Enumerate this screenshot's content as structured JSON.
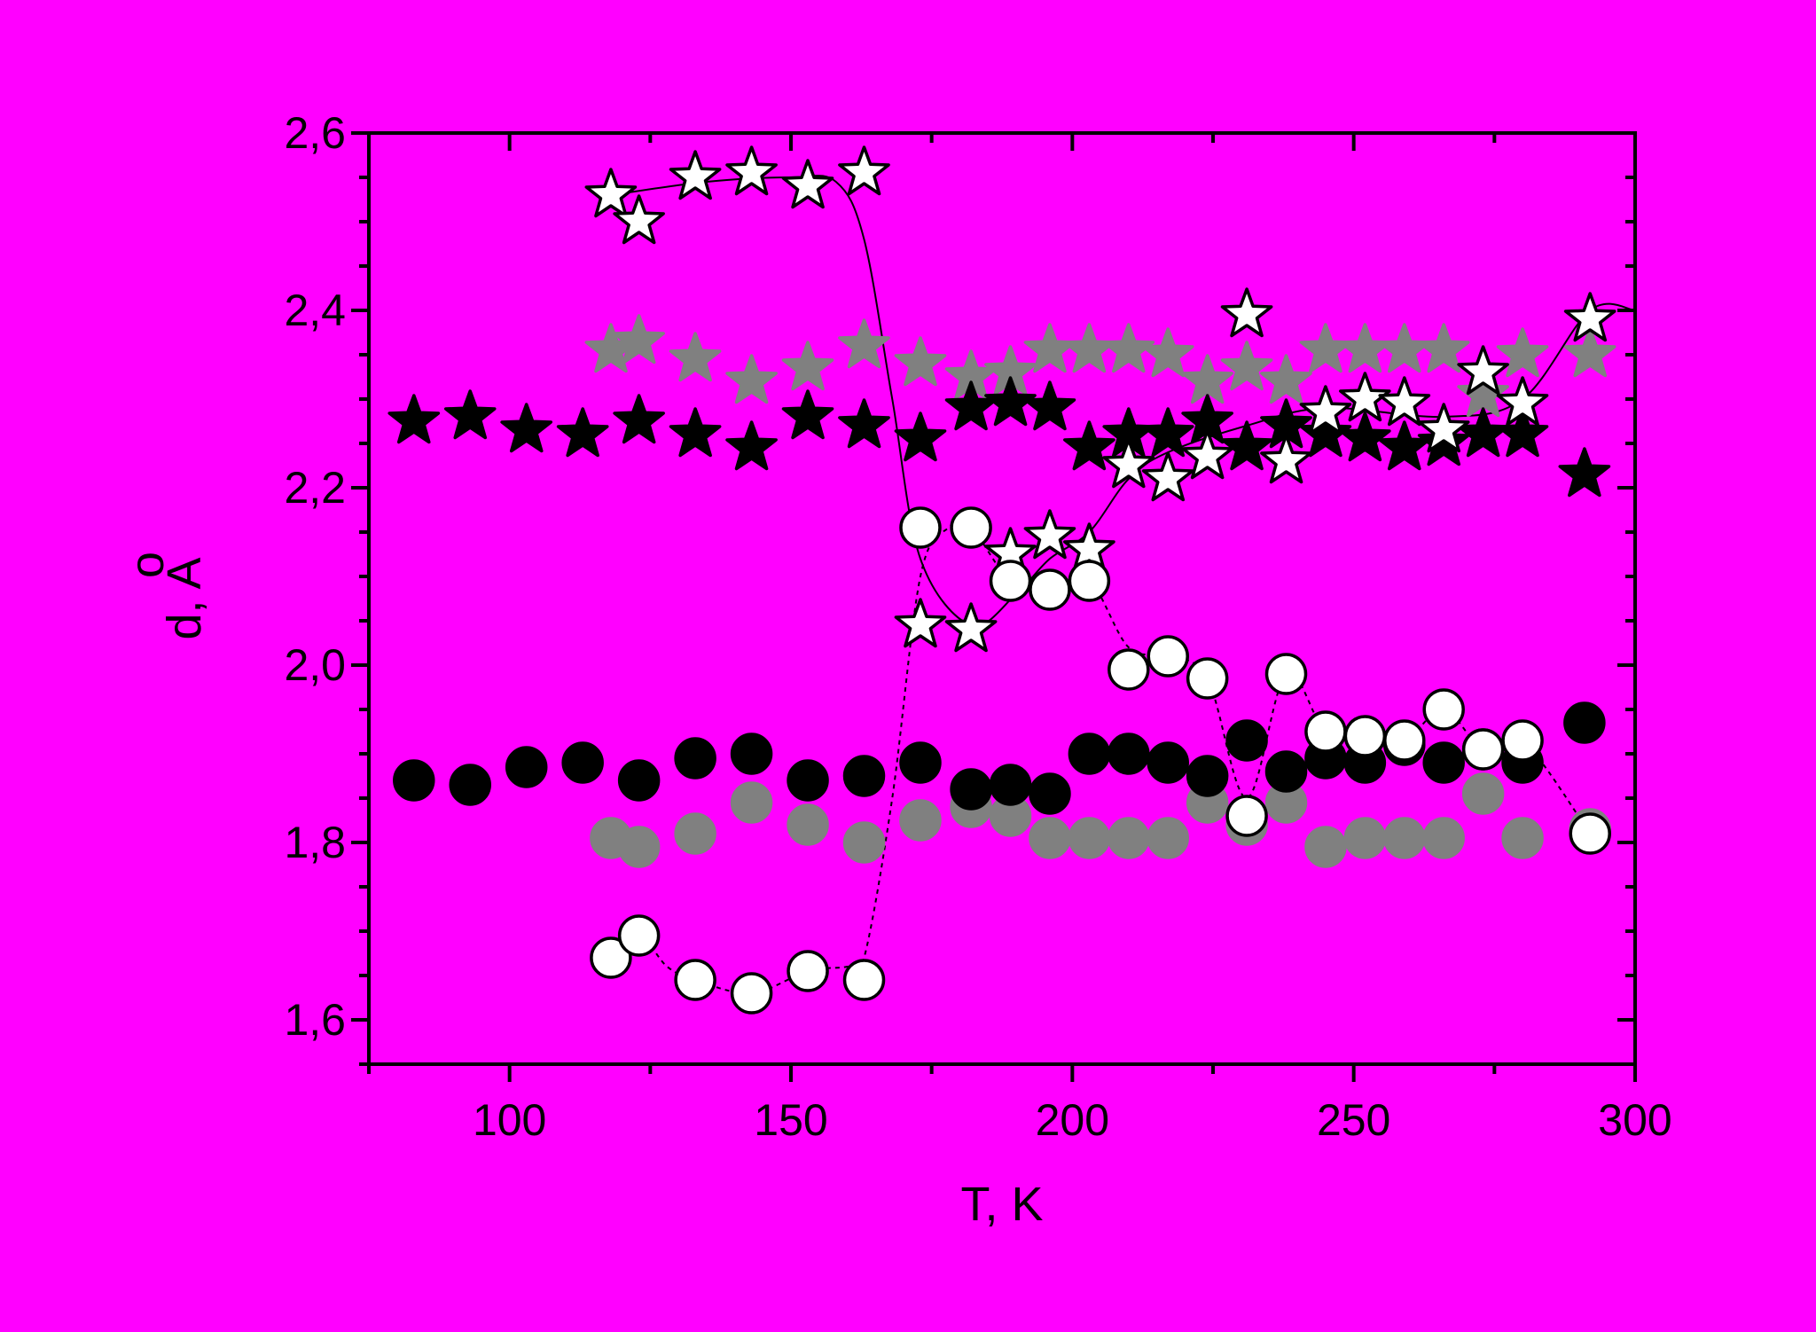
{
  "chart_data": {
    "type": "scatter",
    "xlabel": "T, K",
    "ylabel": "d, A",
    "ylabel_accent": "o",
    "xlim": [
      75,
      300
    ],
    "ylim": [
      1.55,
      2.6
    ],
    "xticks": [
      100,
      150,
      200,
      250,
      300
    ],
    "xtick_labels": [
      "100",
      "150",
      "200",
      "250",
      "300"
    ],
    "yticks": [
      1.6,
      1.8,
      2.0,
      2.2,
      2.4,
      2.6
    ],
    "ytick_labels": [
      "1,6",
      "1,8",
      "2,0",
      "2,2",
      "2,4",
      "2,6"
    ],
    "grid": false,
    "legend": "none",
    "colors": {
      "background": "#ff00ff",
      "black": "#000000",
      "gray": "#808080",
      "white": "#ffffff"
    },
    "series": [
      {
        "marker": "star",
        "fill": "gray",
        "points": [
          [
            118,
            2.355
          ],
          [
            123,
            2.365
          ],
          [
            133,
            2.345
          ],
          [
            143,
            2.32
          ],
          [
            153,
            2.335
          ],
          [
            163,
            2.36
          ],
          [
            173,
            2.34
          ],
          [
            182,
            2.325
          ],
          [
            189,
            2.33
          ],
          [
            196,
            2.355
          ],
          [
            203,
            2.355
          ],
          [
            210,
            2.355
          ],
          [
            217,
            2.35
          ],
          [
            224,
            2.32
          ],
          [
            231,
            2.335
          ],
          [
            238,
            2.32
          ],
          [
            245,
            2.355
          ],
          [
            252,
            2.355
          ],
          [
            259,
            2.355
          ],
          [
            266,
            2.355
          ],
          [
            273,
            2.305
          ],
          [
            280,
            2.35
          ],
          [
            292,
            2.35
          ]
        ]
      },
      {
        "marker": "star",
        "fill": "black",
        "points": [
          [
            83,
            2.275
          ],
          [
            93,
            2.28
          ],
          [
            103,
            2.265
          ],
          [
            113,
            2.26
          ],
          [
            123,
            2.275
          ],
          [
            133,
            2.26
          ],
          [
            143,
            2.245
          ],
          [
            153,
            2.28
          ],
          [
            163,
            2.27
          ],
          [
            173,
            2.255
          ],
          [
            182,
            2.29
          ],
          [
            189,
            2.295
          ],
          [
            196,
            2.29
          ],
          [
            203,
            2.245
          ],
          [
            210,
            2.26
          ],
          [
            217,
            2.26
          ],
          [
            224,
            2.275
          ],
          [
            231,
            2.245
          ],
          [
            238,
            2.27
          ],
          [
            245,
            2.26
          ],
          [
            252,
            2.255
          ],
          [
            259,
            2.245
          ],
          [
            266,
            2.25
          ],
          [
            273,
            2.26
          ],
          [
            280,
            2.26
          ],
          [
            291,
            2.215
          ]
        ]
      },
      {
        "marker": "star",
        "fill": "white",
        "line": "solid",
        "points": [
          [
            118,
            2.53
          ],
          [
            123,
            2.5
          ],
          [
            133,
            2.55
          ],
          [
            143,
            2.555
          ],
          [
            153,
            2.54
          ],
          [
            163,
            2.555
          ],
          [
            173,
            2.045
          ],
          [
            182,
            2.04
          ],
          [
            189,
            2.125
          ],
          [
            196,
            2.145
          ],
          [
            203,
            2.13
          ],
          [
            210,
            2.225
          ],
          [
            217,
            2.21
          ],
          [
            224,
            2.235
          ],
          [
            231,
            2.395
          ],
          [
            238,
            2.23
          ],
          [
            245,
            2.285
          ],
          [
            252,
            2.3
          ],
          [
            259,
            2.295
          ],
          [
            266,
            2.265
          ],
          [
            273,
            2.33
          ],
          [
            280,
            2.295
          ],
          [
            292,
            2.39
          ]
        ],
        "curve": [
          [
            118,
            2.53
          ],
          [
            135,
            2.545
          ],
          [
            150,
            2.55
          ],
          [
            158,
            2.545
          ],
          [
            163,
            2.48
          ],
          [
            168,
            2.3
          ],
          [
            173,
            2.12
          ],
          [
            182,
            2.045
          ],
          [
            190,
            2.08
          ],
          [
            196,
            2.12
          ],
          [
            203,
            2.15
          ],
          [
            210,
            2.21
          ],
          [
            217,
            2.24
          ],
          [
            231,
            2.27
          ],
          [
            245,
            2.29
          ],
          [
            266,
            2.28
          ],
          [
            280,
            2.3
          ],
          [
            292,
            2.4
          ],
          [
            300,
            2.4
          ]
        ]
      },
      {
        "marker": "circle",
        "fill": "gray",
        "points": [
          [
            118,
            1.805
          ],
          [
            123,
            1.795
          ],
          [
            133,
            1.81
          ],
          [
            143,
            1.845
          ],
          [
            153,
            1.82
          ],
          [
            163,
            1.8
          ],
          [
            173,
            1.825
          ],
          [
            182,
            1.84
          ],
          [
            189,
            1.83
          ],
          [
            196,
            1.805
          ],
          [
            203,
            1.805
          ],
          [
            210,
            1.805
          ],
          [
            217,
            1.805
          ],
          [
            224,
            1.845
          ],
          [
            231,
            1.82
          ],
          [
            238,
            1.845
          ],
          [
            245,
            1.795
          ],
          [
            252,
            1.805
          ],
          [
            259,
            1.805
          ],
          [
            266,
            1.805
          ],
          [
            273,
            1.855
          ],
          [
            280,
            1.805
          ],
          [
            292,
            1.815
          ]
        ]
      },
      {
        "marker": "circle",
        "fill": "black",
        "points": [
          [
            83,
            1.87
          ],
          [
            93,
            1.865
          ],
          [
            103,
            1.885
          ],
          [
            113,
            1.89
          ],
          [
            123,
            1.87
          ],
          [
            133,
            1.895
          ],
          [
            143,
            1.9
          ],
          [
            153,
            1.87
          ],
          [
            163,
            1.875
          ],
          [
            173,
            1.89
          ],
          [
            182,
            1.86
          ],
          [
            189,
            1.865
          ],
          [
            196,
            1.855
          ],
          [
            203,
            1.9
          ],
          [
            210,
            1.9
          ],
          [
            217,
            1.89
          ],
          [
            224,
            1.875
          ],
          [
            231,
            1.915
          ],
          [
            238,
            1.88
          ],
          [
            245,
            1.895
          ],
          [
            252,
            1.89
          ],
          [
            259,
            1.91
          ],
          [
            266,
            1.89
          ],
          [
            273,
            1.905
          ],
          [
            280,
            1.89
          ],
          [
            291,
            1.935
          ]
        ]
      },
      {
        "marker": "circle",
        "fill": "white",
        "line": "dashed",
        "points": [
          [
            118,
            1.67
          ],
          [
            123,
            1.695
          ],
          [
            133,
            1.645
          ],
          [
            143,
            1.63
          ],
          [
            153,
            1.655
          ],
          [
            163,
            1.645
          ],
          [
            173,
            2.155
          ],
          [
            182,
            2.155
          ],
          [
            189,
            2.095
          ],
          [
            196,
            2.085
          ],
          [
            203,
            2.095
          ],
          [
            210,
            1.995
          ],
          [
            217,
            2.01
          ],
          [
            224,
            1.985
          ],
          [
            231,
            1.83
          ],
          [
            238,
            1.99
          ],
          [
            245,
            1.925
          ],
          [
            252,
            1.92
          ],
          [
            259,
            1.915
          ],
          [
            266,
            1.95
          ],
          [
            273,
            1.905
          ],
          [
            280,
            1.915
          ],
          [
            292,
            1.81
          ]
        ],
        "curve": [
          [
            118,
            1.67
          ],
          [
            123,
            1.695
          ],
          [
            128,
            1.66
          ],
          [
            133,
            1.645
          ],
          [
            143,
            1.63
          ],
          [
            153,
            1.655
          ],
          [
            160,
            1.66
          ],
          [
            163,
            1.67
          ],
          [
            168,
            1.85
          ],
          [
            173,
            2.1
          ],
          [
            178,
            2.155
          ],
          [
            182,
            2.155
          ],
          [
            189,
            2.095
          ],
          [
            196,
            2.085
          ],
          [
            203,
            2.095
          ],
          [
            210,
            2.02
          ],
          [
            217,
            2.01
          ],
          [
            224,
            1.985
          ],
          [
            231,
            1.85
          ],
          [
            238,
            1.99
          ],
          [
            245,
            1.925
          ],
          [
            252,
            1.92
          ],
          [
            259,
            1.915
          ],
          [
            266,
            1.95
          ],
          [
            273,
            1.905
          ],
          [
            280,
            1.915
          ],
          [
            292,
            1.81
          ]
        ]
      }
    ]
  }
}
